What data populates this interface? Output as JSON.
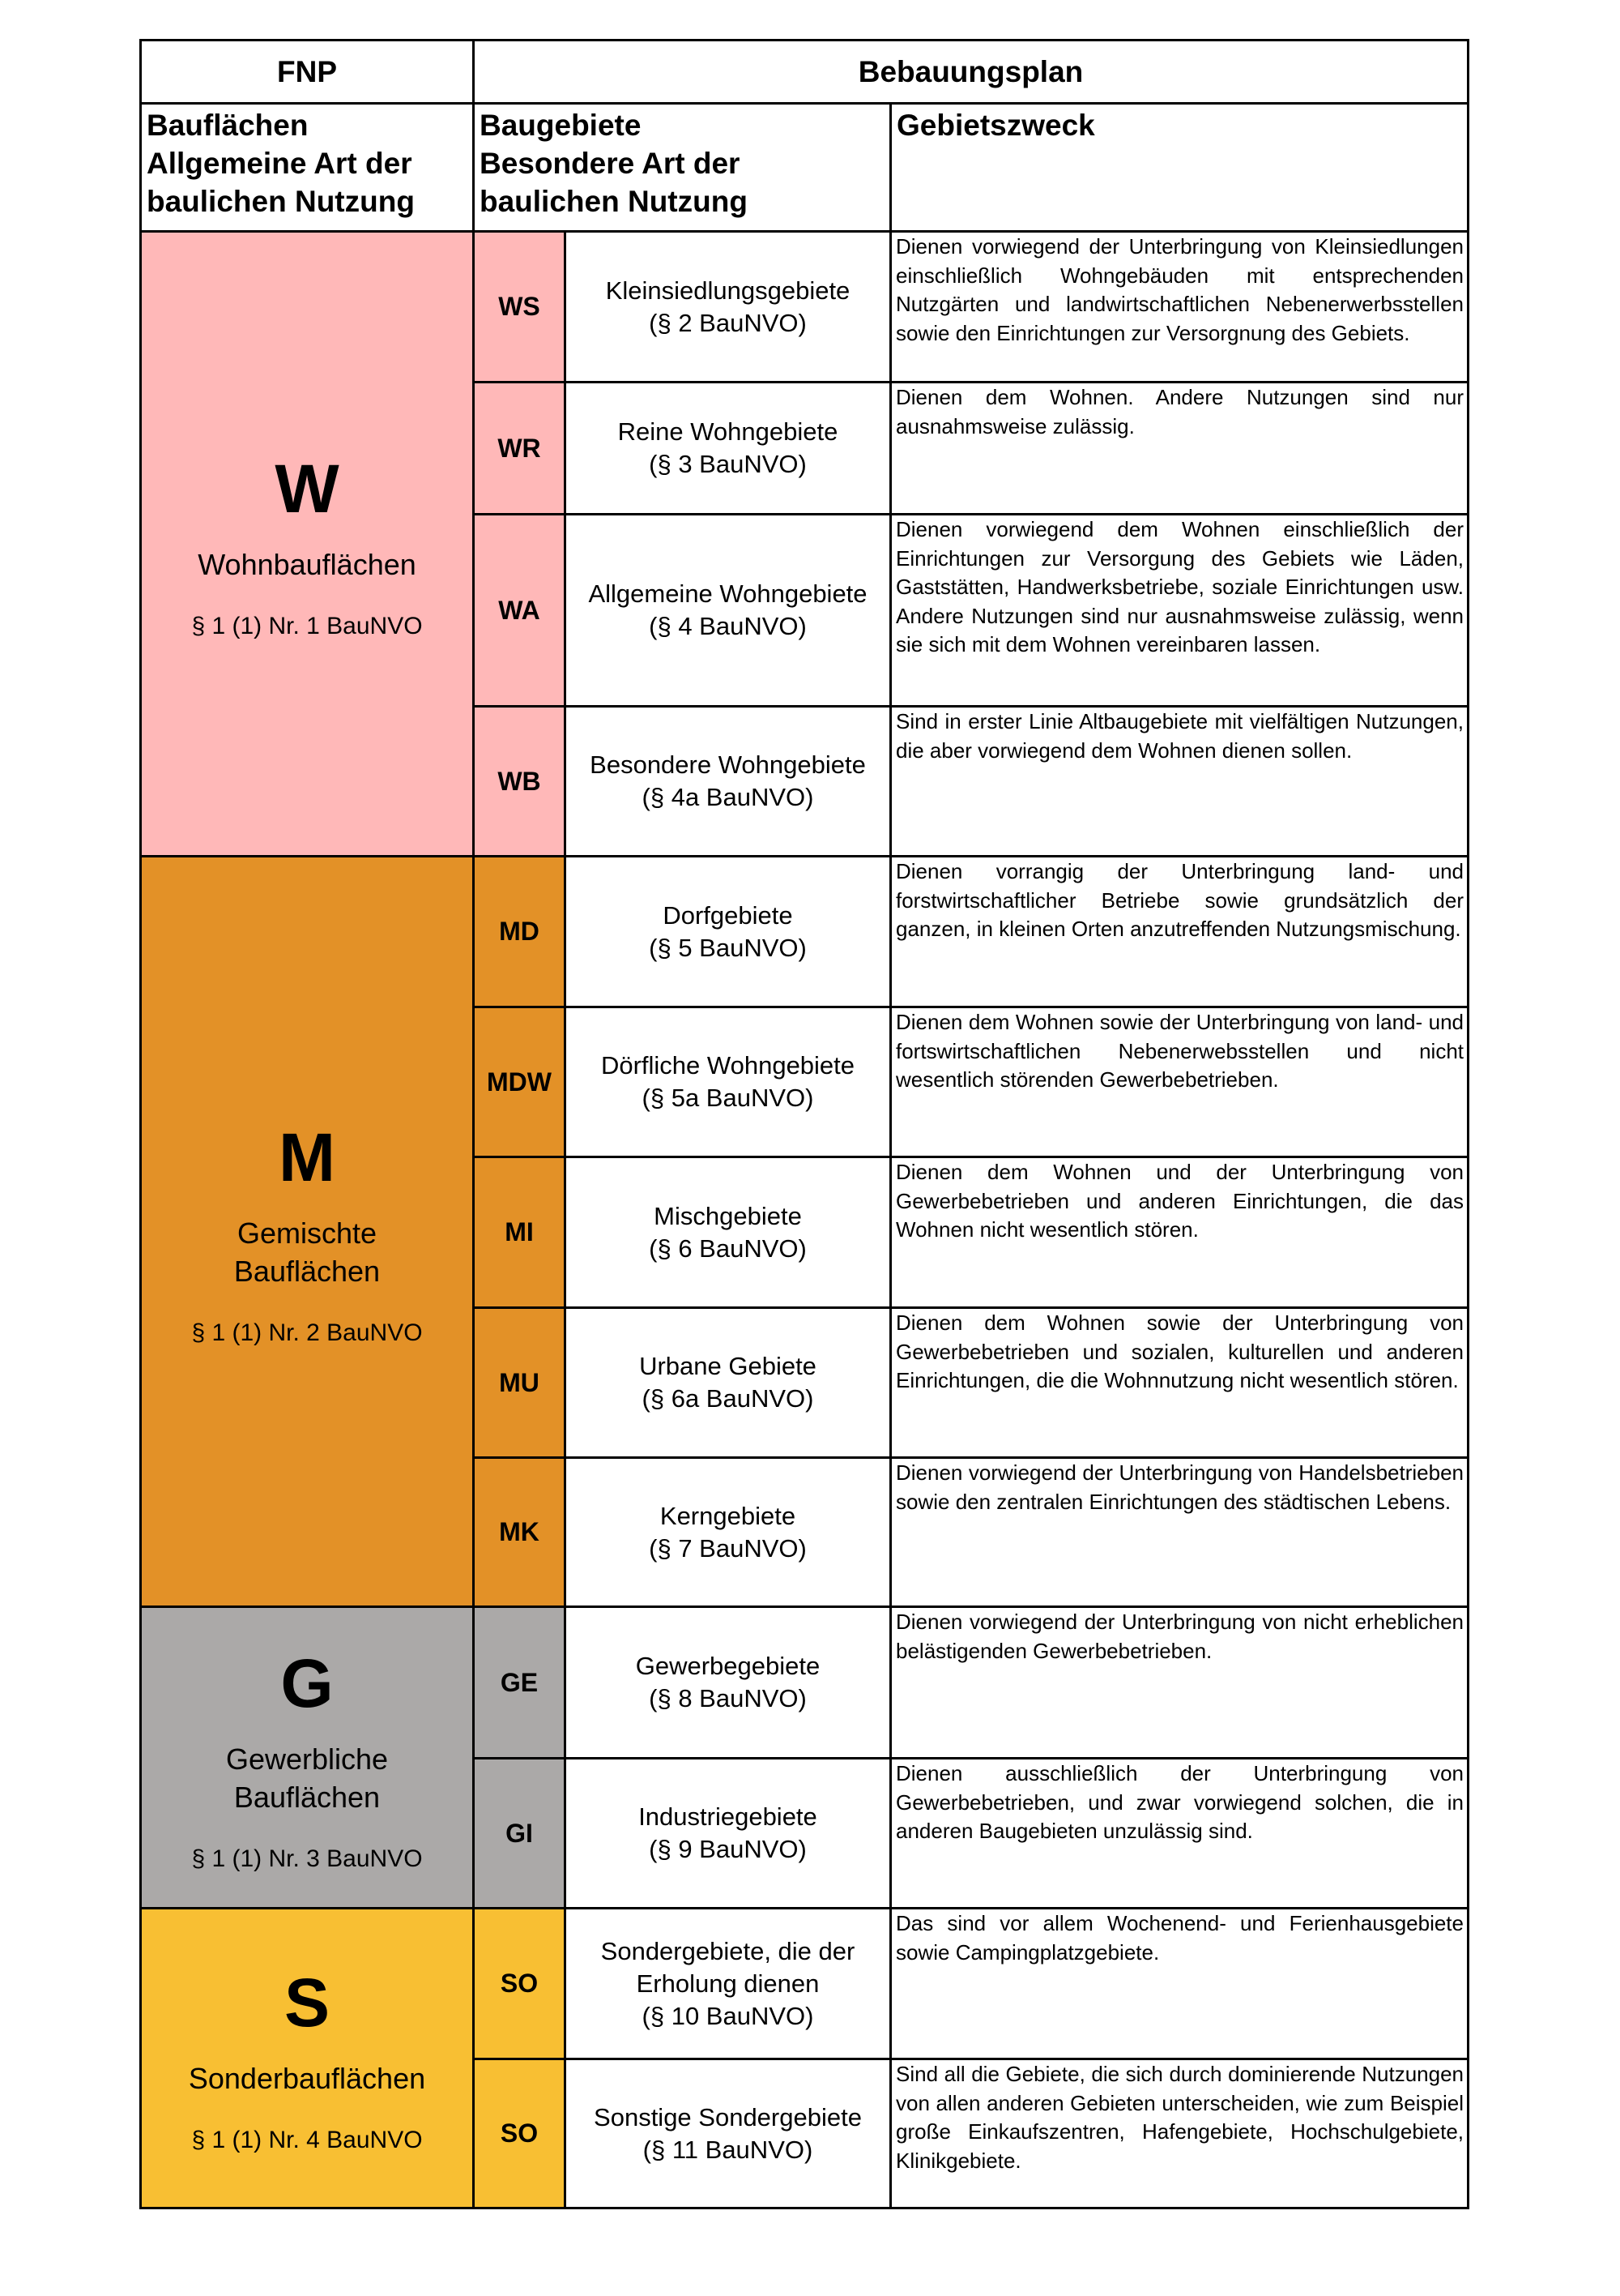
{
  "header": {
    "fnp": "FNP",
    "bplan": "Bebauungsplan",
    "col1": [
      "Bauflächen",
      "Allgemeine Art der",
      "baulichen Nutzung"
    ],
    "col2": [
      "Baugebiete",
      "Besondere Art der",
      "baulichen Nutzung"
    ],
    "col3": "Gebietszweck"
  },
  "groups": [
    {
      "letter": "W",
      "name": [
        "Wohnbauflächen"
      ],
      "para": "§ 1 (1) Nr. 1 BauNVO",
      "color": "#ffb8b8"
    },
    {
      "letter": "M",
      "name": [
        "Gemischte",
        "Bauflächen"
      ],
      "para": "§ 1 (1) Nr. 2 BauNVO",
      "color": "#e39127"
    },
    {
      "letter": "G",
      "name": [
        "Gewerbliche",
        "Bauflächen"
      ],
      "para": "§ 1 (1) Nr. 3 BauNVO",
      "color": "#aba9a8"
    },
    {
      "letter": "S",
      "name": [
        "Sonderbauflächen"
      ],
      "para": "§ 1 (1) Nr. 4 BauNVO",
      "color": "#f8bf33"
    }
  ],
  "rows": [
    {
      "code": "WS",
      "name": [
        "Kleinsiedlungsgebiete",
        "(§ 2 BauNVO)"
      ],
      "desc": "Dienen vorwiegend der Unterbringung von Kleinsiedlungen einschließlich Wohngebäuden mit entsprechenden Nutzgärten und landwirtschaftlichen Nebenerwerbsstellen sowie den Einrichtungen zur Versorgnung des Gebiets."
    },
    {
      "code": "WR",
      "name": [
        "Reine Wohngebiete",
        "(§ 3 BauNVO)"
      ],
      "desc": "Dienen dem Wohnen. Andere Nutzungen sind nur ausnahmsweise zulässig."
    },
    {
      "code": "WA",
      "name": [
        "Allgemeine Wohngebiete",
        "(§ 4 BauNVO)"
      ],
      "desc": "Dienen vorwiegend dem Wohnen einschließlich der Einrichtungen zur Versorgung des Gebiets wie Läden, Gaststätten, Handwerksbetriebe, soziale Einrichtungen usw. Andere Nutzungen sind nur ausnahmsweise zulässig, wenn sie sich mit dem Wohnen vereinbaren lassen."
    },
    {
      "code": "WB",
      "name": [
        "Besondere Wohngebiete",
        "(§ 4a BauNVO)"
      ],
      "desc": "Sind in erster Linie Altbaugebiete mit vielfältigen Nutzungen, die aber vorwiegend dem Wohnen dienen sollen."
    },
    {
      "code": "MD",
      "name": [
        "Dorfgebiete",
        "(§ 5 BauNVO)"
      ],
      "desc": "Dienen vorrangig der Unterbringung land- und forstwirtschaftlicher Betriebe sowie grundsätzlich der ganzen, in kleinen Orten anzutreffenden Nutzungsmischung."
    },
    {
      "code": "MDW",
      "name": [
        "Dörfliche Wohngebiete",
        "(§ 5a BauNVO)"
      ],
      "desc": "Dienen dem Wohnen sowie der Unterbringung von land- und fortswirtschaftlichen Nebenerwebsstellen und nicht wesentlich störenden Gewerbebetrieben."
    },
    {
      "code": "MI",
      "name": [
        "Mischgebiete",
        "(§ 6 BauNVO)"
      ],
      "desc": "Dienen dem Wohnen und der Unterbringung von Gewerbebetrieben und anderen Einrichtungen, die das Wohnen nicht wesentlich stören."
    },
    {
      "code": "MU",
      "name": [
        "Urbane Gebiete",
        "(§ 6a BauNVO)"
      ],
      "desc": "Dienen dem Wohnen sowie der Unterbringung von Gewerbebetrieben und sozialen, kulturellen und anderen Einrichtungen, die die Wohnnutzung nicht wesentlich stören."
    },
    {
      "code": "MK",
      "name": [
        "Kerngebiete",
        "(§ 7 BauNVO)"
      ],
      "desc": "Dienen vorwiegend der Unterbringung von Handelsbetrieben sowie den zentralen Einrichtungen des städtischen Lebens."
    },
    {
      "code": "GE",
      "name": [
        "Gewerbegebiete",
        "(§ 8 BauNVO)"
      ],
      "desc": "Dienen vorwiegend der Unterbringung von nicht erheblichen belästigenden Gewerbebetrieben."
    },
    {
      "code": "GI",
      "name": [
        "Industriegebiete",
        "(§ 9 BauNVO)"
      ],
      "desc": "Dienen ausschließlich der Unterbringung von Gewerbebetrieben, und zwar vorwiegend solchen, die in anderen Baugebieten unzulässig sind."
    },
    {
      "code": "SO",
      "name": [
        "Sondergebiete, die der",
        "Erholung dienen",
        "(§ 10 BauNVO)"
      ],
      "desc": "Das sind vor allem Wochenend- und Ferienhausgebiete sowie Campingplatzgebiete."
    },
    {
      "code": "SO",
      "name": [
        "Sonstige Sondergebiete",
        "(§ 11 BauNVO)"
      ],
      "desc": "Sind all die Gebiete, die sich durch dominierende Nutzungen von allen anderen Gebieten unterscheiden, wie zum Beispiel große Einkaufszentren, Hafengebiete, Hochschulgebiete, Klinikgebiete."
    }
  ]
}
